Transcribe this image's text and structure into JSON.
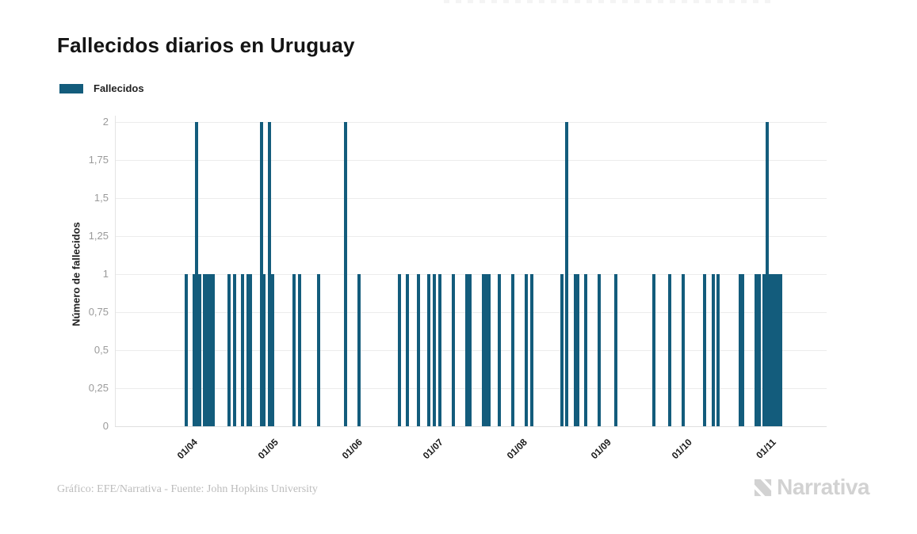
{
  "title": "Fallecidos diarios en Uruguay",
  "legend": {
    "label": "Fallecidos",
    "swatch_color": "#135C7C"
  },
  "footer": {
    "credit": "Gráfico: EFE/Narrativa - Fuente: John Hopkins University",
    "brand": "Narrativa"
  },
  "chart_data": {
    "type": "bar",
    "title": "Fallecidos diarios en Uruguay",
    "xlabel": "",
    "ylabel": "Número de fallecidos",
    "ylim": [
      0,
      2
    ],
    "grid": true,
    "legend_position": "top-left",
    "bar_color": "#135C7C",
    "y_ticks": [
      {
        "label": "0",
        "value": 0
      },
      {
        "label": "0,25",
        "value": 0.25
      },
      {
        "label": "0,5",
        "value": 0.5
      },
      {
        "label": "0,75",
        "value": 0.75
      },
      {
        "label": "1",
        "value": 1
      },
      {
        "label": "1,25",
        "value": 1.25
      },
      {
        "label": "1,5",
        "value": 1.5
      },
      {
        "label": "1,75",
        "value": 1.75
      },
      {
        "label": "2",
        "value": 2
      }
    ],
    "x_ticks": [
      "01/04",
      "01/05",
      "01/06",
      "01/07",
      "01/08",
      "01/09",
      "01/10",
      "01/11"
    ],
    "series": [
      {
        "name": "Fallecidos",
        "points": [
          {
            "date": "31/03",
            "value": 1
          },
          {
            "date": "03/04",
            "value": 1
          },
          {
            "date": "04/04",
            "value": 2
          },
          {
            "date": "05/04",
            "value": 1
          },
          {
            "date": "07/04",
            "value": 1
          },
          {
            "date": "08/04",
            "value": 1
          },
          {
            "date": "09/04",
            "value": 1
          },
          {
            "date": "10/04",
            "value": 1
          },
          {
            "date": "16/04",
            "value": 1
          },
          {
            "date": "18/04",
            "value": 1
          },
          {
            "date": "21/04",
            "value": 1
          },
          {
            "date": "23/04",
            "value": 1
          },
          {
            "date": "24/04",
            "value": 1
          },
          {
            "date": "28/04",
            "value": 2
          },
          {
            "date": "29/04",
            "value": 1
          },
          {
            "date": "01/05",
            "value": 2
          },
          {
            "date": "02/05",
            "value": 1
          },
          {
            "date": "10/05",
            "value": 1
          },
          {
            "date": "12/05",
            "value": 1
          },
          {
            "date": "19/05",
            "value": 1
          },
          {
            "date": "29/05",
            "value": 2
          },
          {
            "date": "03/06",
            "value": 1
          },
          {
            "date": "18/06",
            "value": 1
          },
          {
            "date": "21/06",
            "value": 1
          },
          {
            "date": "25/06",
            "value": 1
          },
          {
            "date": "29/06",
            "value": 1
          },
          {
            "date": "01/07",
            "value": 1
          },
          {
            "date": "03/07",
            "value": 1
          },
          {
            "date": "08/07",
            "value": 1
          },
          {
            "date": "13/07",
            "value": 1
          },
          {
            "date": "14/07",
            "value": 1
          },
          {
            "date": "19/07",
            "value": 1
          },
          {
            "date": "20/07",
            "value": 1
          },
          {
            "date": "21/07",
            "value": 1
          },
          {
            "date": "25/07",
            "value": 1
          },
          {
            "date": "30/07",
            "value": 1
          },
          {
            "date": "04/08",
            "value": 1
          },
          {
            "date": "06/08",
            "value": 1
          },
          {
            "date": "17/08",
            "value": 1
          },
          {
            "date": "19/08",
            "value": 2
          },
          {
            "date": "22/08",
            "value": 1
          },
          {
            "date": "23/08",
            "value": 1
          },
          {
            "date": "26/08",
            "value": 1
          },
          {
            "date": "31/08",
            "value": 1
          },
          {
            "date": "06/09",
            "value": 1
          },
          {
            "date": "20/09",
            "value": 1
          },
          {
            "date": "26/09",
            "value": 1
          },
          {
            "date": "01/10",
            "value": 1
          },
          {
            "date": "09/10",
            "value": 1
          },
          {
            "date": "12/10",
            "value": 1
          },
          {
            "date": "14/10",
            "value": 1
          },
          {
            "date": "22/10",
            "value": 1
          },
          {
            "date": "23/10",
            "value": 1
          },
          {
            "date": "28/10",
            "value": 1
          },
          {
            "date": "29/10",
            "value": 1
          },
          {
            "date": "31/10",
            "value": 1
          },
          {
            "date": "01/11",
            "value": 2
          },
          {
            "date": "02/11",
            "value": 1
          },
          {
            "date": "03/11",
            "value": 1
          },
          {
            "date": "04/11",
            "value": 1
          },
          {
            "date": "05/11",
            "value": 1
          },
          {
            "date": "06/11",
            "value": 1
          }
        ]
      }
    ]
  }
}
